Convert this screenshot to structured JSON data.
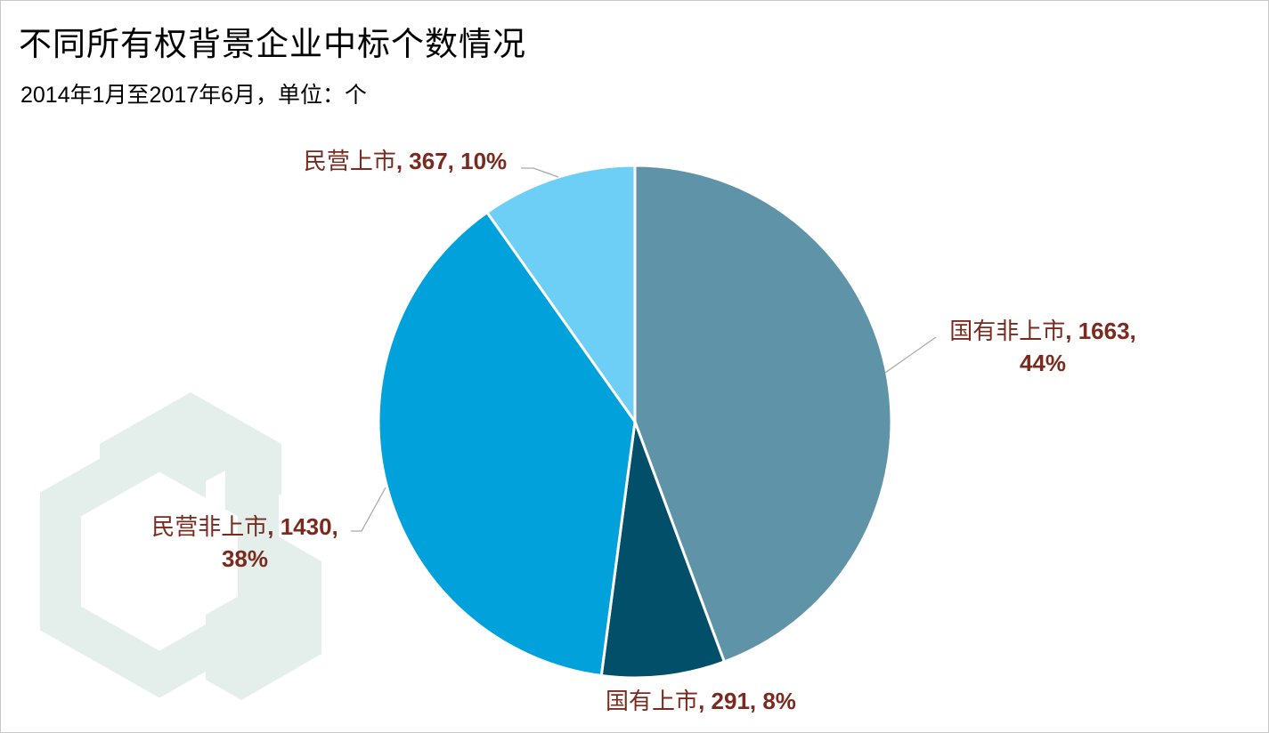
{
  "title": "不同所有权背景企业中标个数情况",
  "subtitle": "2014年1月至2017年6月，单位：个",
  "colors": {
    "label_text": "#7a2a1e",
    "watermark": "#e4efeb",
    "slice_border": "#ffffff"
  },
  "chart_data": {
    "type": "pie",
    "title": "不同所有权背景企业中标个数情况",
    "subtitle": "2014年1月至2017年6月，单位：个",
    "start_angle_deg": 0,
    "direction": "clockwise",
    "slices": [
      {
        "name": "国有非上市",
        "value": 1663,
        "percent": "44%",
        "color": "#5f93a7",
        "label_lines": [
          [
            "国有非上市",
            ",",
            " 1663,"
          ],
          [
            "",
            "",
            "44%"
          ]
        ]
      },
      {
        "name": "国有上市",
        "value": 291,
        "percent": "8%",
        "color": "#024f6a",
        "label_lines": [
          [
            "国有上市",
            ",",
            " 291, 8%"
          ]
        ]
      },
      {
        "name": "民营非上市",
        "value": 1430,
        "percent": "38%",
        "color": "#01a1db",
        "label_lines": [
          [
            "民营非上市",
            ",",
            " 1430,"
          ],
          [
            "",
            "",
            "38%"
          ]
        ]
      },
      {
        "name": "民营上市",
        "value": 367,
        "percent": "10%",
        "color": "#6dcff5",
        "label_lines": [
          [
            "民营上市",
            ",",
            " 367, 10%"
          ]
        ]
      }
    ]
  }
}
